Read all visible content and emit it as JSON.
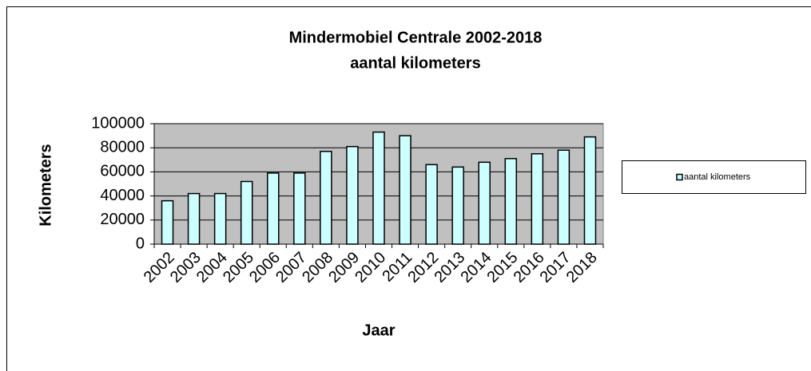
{
  "chart_data": {
    "type": "bar",
    "title": "Mindermobiel Centrale 2002-2018",
    "subtitle": "aantal kilometers",
    "x_label": "Jaar",
    "y_label": "Kilometers",
    "categories": [
      "2002",
      "2003",
      "2004",
      "2005",
      "2006",
      "2007",
      "2008",
      "2009",
      "2010",
      "2011",
      "2012",
      "2013",
      "2014",
      "2015",
      "2016",
      "2017",
      "2018"
    ],
    "series": [
      {
        "name": "aantal kilometers",
        "color": "#ccffff",
        "values": [
          36000,
          42000,
          42000,
          52000,
          59000,
          59000,
          77000,
          81000,
          93000,
          90000,
          66000,
          64000,
          68000,
          71000,
          75000,
          78000,
          89000
        ]
      }
    ],
    "ylim": [
      0,
      100000
    ],
    "yticks": [
      0,
      20000,
      40000,
      60000,
      80000,
      100000
    ],
    "grid": true,
    "legend": "right"
  }
}
